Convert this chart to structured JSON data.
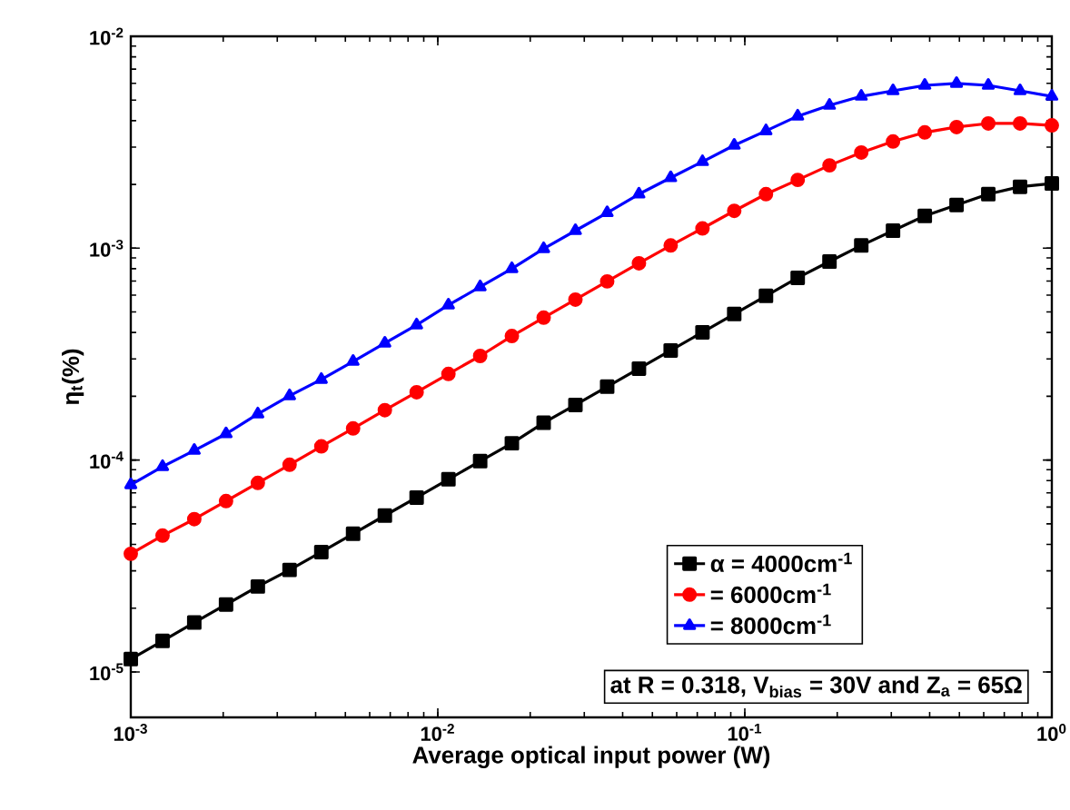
{
  "chart_data": {
    "type": "line",
    "xlabel": "Average optical input power (W)",
    "ylabel": "η$_{t}$(%)",
    "log": "xy",
    "xlim": [
      0.001,
      1
    ],
    "ylim": [
      6.1e-06,
      0.01
    ],
    "xticks": [
      {
        "value": 0.001,
        "label": "10$^{-3}$"
      },
      {
        "value": 0.01,
        "label": "10$^{-2}$"
      },
      {
        "value": 0.1,
        "label": "10$^{-1}$"
      },
      {
        "value": 1,
        "label": "10$^{0}$"
      }
    ],
    "yticks": [
      {
        "value": 1e-05,
        "label": "10$^{-5}$"
      },
      {
        "value": 0.0001,
        "label": "10$^{-4}$"
      },
      {
        "value": 0.001,
        "label": "10$^{-3}$"
      },
      {
        "value": 0.01,
        "label": "10$^{-2}$"
      }
    ],
    "x": [
      0.001,
      0.001269,
      0.00161,
      0.002043,
      0.002593,
      0.00329,
      0.004175,
      0.005298,
      0.006723,
      0.008532,
      0.01083,
      0.01374,
      0.01743,
      0.02212,
      0.02807,
      0.03562,
      0.0452,
      0.05736,
      0.07279,
      0.09237,
      0.1172,
      0.1487,
      0.1887,
      0.2395,
      0.3039,
      0.3857,
      0.4894,
      0.621,
      0.788,
      1
    ],
    "series": [
      {
        "name": "α = 4000cm$^{-1}$",
        "color": "#000000",
        "marker": "square",
        "values": [
          1.15e-05,
          1.4e-05,
          1.71e-05,
          2.08e-05,
          2.53e-05,
          3.03e-05,
          3.68e-05,
          4.49e-05,
          5.47e-05,
          6.65e-05,
          8.11e-05,
          9.88e-05,
          0.00012,
          0.00015,
          0.000182,
          0.000222,
          0.00027,
          0.000329,
          0.000401,
          0.000489,
          0.000596,
          0.000725,
          0.000865,
          0.00103,
          0.00121,
          0.00142,
          0.0016,
          0.0018,
          0.00195,
          0.00202
        ]
      },
      {
        "name": "= 6000cm$^{-1}$",
        "color": "#ff0000",
        "marker": "circle",
        "values": [
          3.61e-05,
          4.4e-05,
          5.26e-05,
          6.4e-05,
          7.8e-05,
          9.5e-05,
          0.000116,
          0.000141,
          0.000172,
          0.000209,
          0.000255,
          0.00031,
          0.000385,
          0.00047,
          0.000572,
          0.000697,
          0.000849,
          0.00103,
          0.00124,
          0.0015,
          0.0018,
          0.0021,
          0.00246,
          0.00283,
          0.00319,
          0.00352,
          0.00373,
          0.00388,
          0.00388,
          0.0038
        ]
      },
      {
        "name": "= 8000cm$^{-1}$",
        "color": "#0000ff",
        "marker": "triangle",
        "values": [
          7.64e-05,
          9.31e-05,
          0.000111,
          0.000133,
          0.000165,
          0.000201,
          0.00024,
          0.000292,
          0.000356,
          0.000434,
          0.000539,
          0.000657,
          0.0008,
          0.000994,
          0.00121,
          0.00147,
          0.0018,
          0.00215,
          0.00256,
          0.00306,
          0.00358,
          0.0042,
          0.00472,
          0.00521,
          0.00553,
          0.00587,
          0.00599,
          0.00587,
          0.00553,
          0.00521
        ]
      }
    ],
    "legend": "bottom right",
    "grid": false,
    "annotations": [
      "at R = 0.318, V$_{bias}$ = 30V and Z$_{a}$ = 65Ω"
    ]
  }
}
